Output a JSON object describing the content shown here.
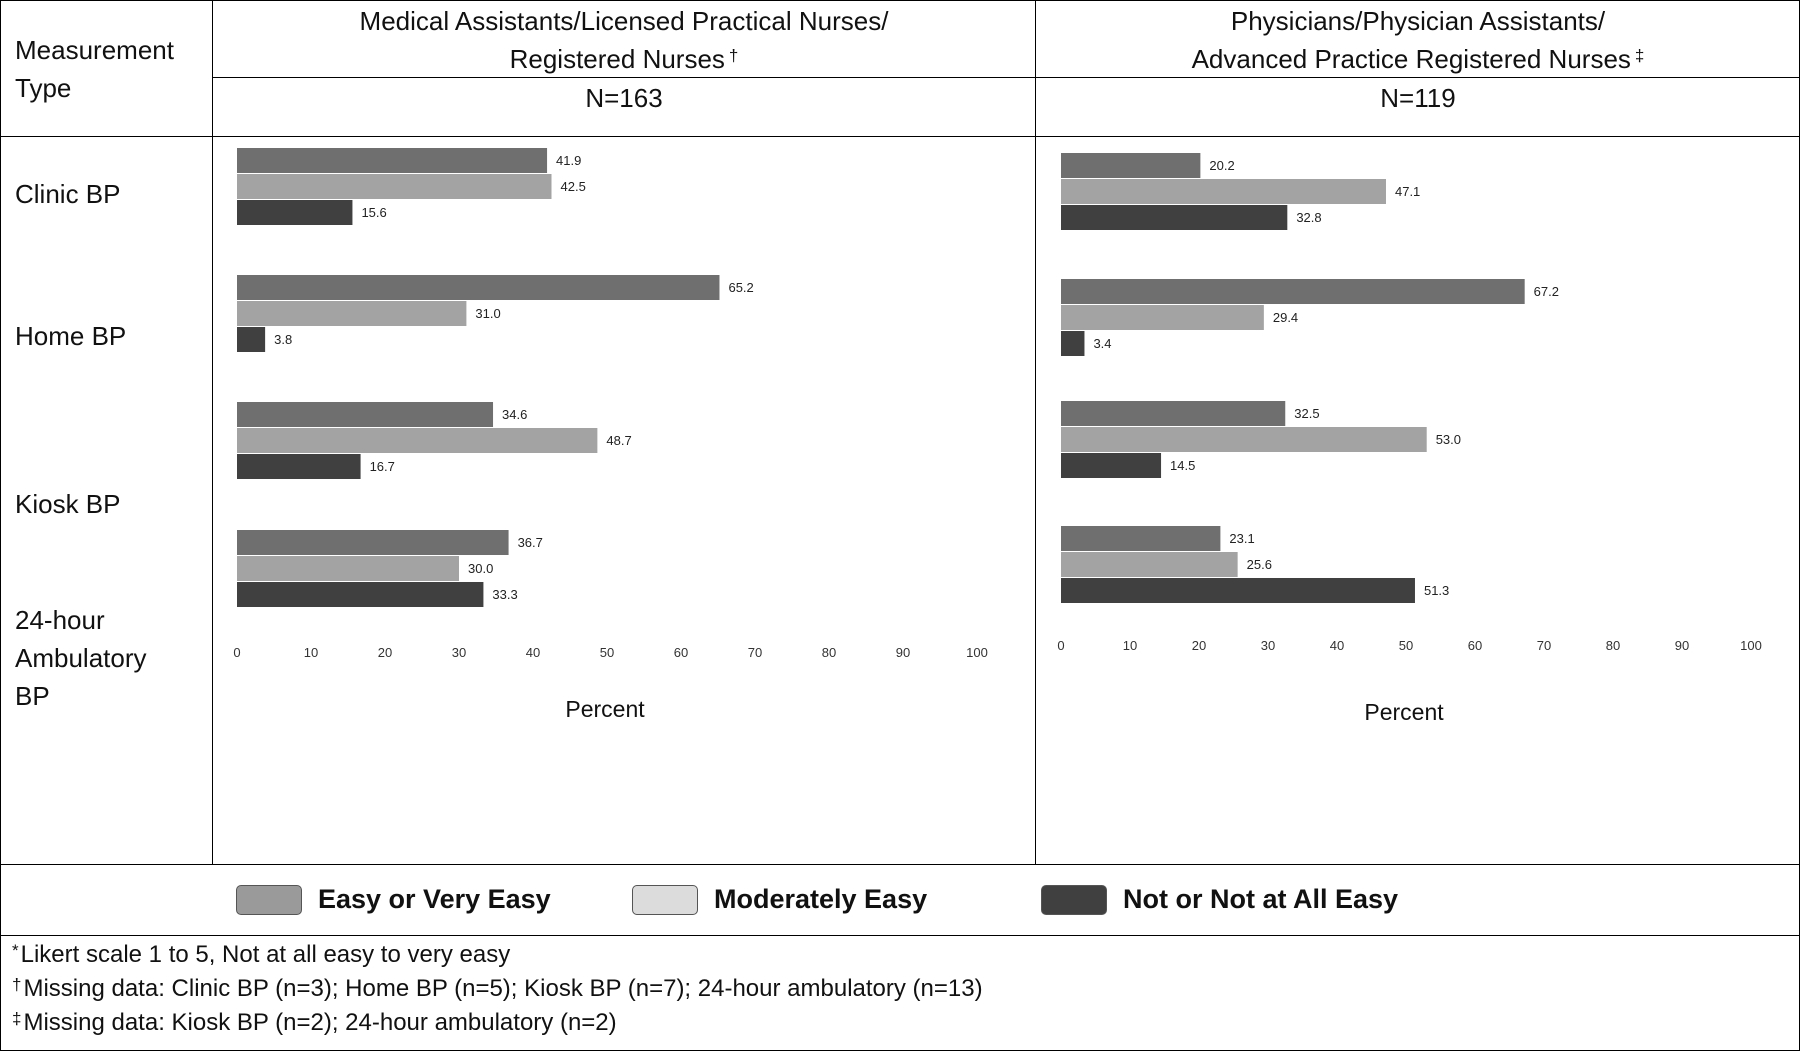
{
  "header": {
    "measurement_type_line1": "Measurement",
    "measurement_type_line2": "Type",
    "group1_line1": "Medical Assistants/Licensed Practical Nurses/",
    "group1_line2": "Registered Nurses",
    "group1_mark": "†",
    "group1_n": "N=163",
    "group2_line1": "Physicians/Physician Assistants/",
    "group2_line2": "Advanced Practice Registered Nurses",
    "group2_mark": "‡",
    "group2_n": "N=119"
  },
  "rows": {
    "clinic": "Clinic BP",
    "home": "Home BP",
    "kiosk": "Kiosk BP",
    "amb_line1": "24-hour",
    "amb_line2": "Ambulatory",
    "amb_line3": "BP"
  },
  "legend": {
    "easy": "Easy or Very Easy",
    "moderate": "Moderately Easy",
    "not_easy": "Not or Not at All Easy"
  },
  "notes": {
    "n1_mark": "*",
    "n1": "Likert scale 1 to 5, Not at all easy to very easy",
    "n2_mark": "†",
    "n2": "Missing data: Clinic BP (n=3); Home BP (n=5); Kiosk BP (n=7); 24-hour ambulatory (n=13)",
    "n3_mark": "‡",
    "n3": "Missing data: Kiosk BP (n=2); 24-hour ambulatory (n=2)"
  },
  "colors": {
    "easy": "#6f6f6f",
    "moderate": "#a3a3a3",
    "not_easy": "#404040",
    "legend_easy": "#9a9a9a",
    "legend_moderate": "#dcdcdc",
    "legend_not_easy": "#404040"
  },
  "chart_data": [
    {
      "type": "bar",
      "orientation": "horizontal",
      "title": "Medical Assistants/Licensed Practical Nurses/ Registered Nurses †",
      "categories": [
        "Clinic BP",
        "Home BP",
        "Kiosk BP",
        "24-hour Ambulatory BP"
      ],
      "series": [
        {
          "name": "Easy or Very Easy",
          "values": [
            41.9,
            65.2,
            34.6,
            36.7
          ]
        },
        {
          "name": "Moderately Easy",
          "values": [
            42.5,
            31.0,
            48.7,
            30.0
          ]
        },
        {
          "name": "Not or Not at All Easy",
          "values": [
            15.6,
            3.8,
            16.7,
            33.3
          ]
        }
      ],
      "data_labels": [
        [
          "41.9",
          "65.2",
          "34.6",
          "36.7"
        ],
        [
          "42.5",
          "31.0",
          "48.7",
          "30.0"
        ],
        [
          "15.6",
          "3.8",
          "16.7",
          "33.3"
        ]
      ],
      "xlabel": "Percent",
      "xlim": [
        0,
        100
      ],
      "xticks": [
        "0",
        "10",
        "20",
        "30",
        "40",
        "50",
        "60",
        "70",
        "80",
        "90",
        "100"
      ],
      "grid": false
    },
    {
      "type": "bar",
      "orientation": "horizontal",
      "title": "Physicians/Physician Assistants/ Advanced Practice Registered Nurses ‡",
      "categories": [
        "Clinic BP",
        "Home BP",
        "Kiosk BP",
        "24-hour Ambulatory BP"
      ],
      "series": [
        {
          "name": "Easy or Very Easy",
          "values": [
            20.2,
            67.2,
            32.5,
            23.1
          ]
        },
        {
          "name": "Moderately Easy",
          "values": [
            47.1,
            29.4,
            53.0,
            25.6
          ]
        },
        {
          "name": "Not or Not at All Easy",
          "values": [
            32.8,
            3.4,
            14.5,
            51.3
          ]
        }
      ],
      "data_labels": [
        [
          "20.2",
          "67.2",
          "32.5",
          "23.1"
        ],
        [
          "47.1",
          "29.4",
          "53.0",
          "25.6"
        ],
        [
          "32.8",
          "3.4",
          "14.5",
          "51.3"
        ]
      ],
      "xlabel": "Percent",
      "xlim": [
        0,
        100
      ],
      "xticks": [
        "0",
        "10",
        "20",
        "30",
        "40",
        "50",
        "60",
        "70",
        "80",
        "90",
        "100"
      ],
      "grid": false
    }
  ]
}
